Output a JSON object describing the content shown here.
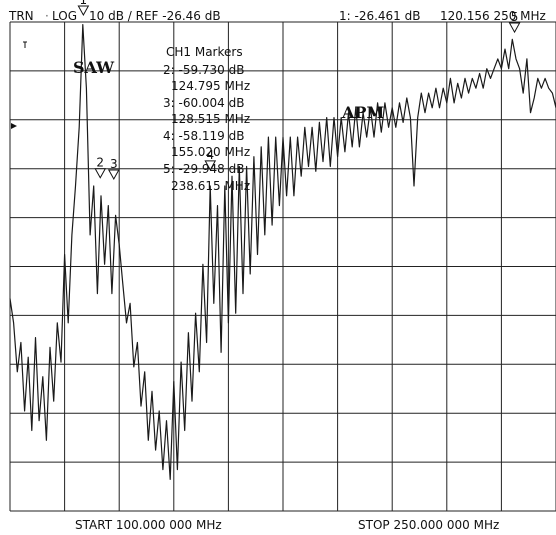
{
  "header": {
    "trace_mode": "TRN",
    "format": "LOG",
    "scale": "10 dB / REF  -26.46 dB",
    "active_marker": "1:  -26.461 dB",
    "active_marker_freq": "120.156 250 MHz"
  },
  "footer": {
    "start": "START  100.000 000 MHz",
    "stop": "STOP  250.000 000 MHz"
  },
  "marker_panel": {
    "title": "CH1 Markers",
    "lines": [
      "2: -59.730 dB",
      "124.795 MHz",
      "3: -60.004 dB",
      "128.515 MHz",
      "4: -58.119 dB",
      "155.020 MHz",
      "5: -29.948 dB",
      "238.615 MHz"
    ]
  },
  "annotations": {
    "saw": "SAW",
    "apm": "APM"
  },
  "colors": {
    "trace": "#1a1a1a",
    "grid": "#222222",
    "background": "#ffffff"
  },
  "chart_data": {
    "type": "line",
    "x_unit": "MHz",
    "y_unit": "dB",
    "xlim": [
      100,
      250
    ],
    "ylim": [
      -126.46,
      -26.46
    ],
    "grid": true,
    "markers": [
      {
        "label": "1",
        "x": 120.156,
        "y": -26.461
      },
      {
        "label": "2",
        "x": 124.795,
        "y": -59.73
      },
      {
        "label": "3",
        "x": 128.515,
        "y": -60.004
      },
      {
        "label": "4",
        "x": 155.02,
        "y": -58.119
      },
      {
        "label": "5",
        "x": 238.615,
        "y": -29.948
      }
    ],
    "series": [
      {
        "x": [
          100,
          101,
          102,
          103,
          104,
          105,
          106,
          107,
          108,
          109,
          110,
          111,
          112,
          113,
          114,
          115,
          116,
          117,
          118,
          119,
          120,
          121,
          122,
          123,
          124,
          125,
          126,
          127,
          128,
          129,
          130,
          131,
          132,
          133,
          134,
          135,
          136,
          137,
          138,
          139,
          140,
          141,
          142,
          143,
          144,
          145,
          146,
          147,
          148,
          149,
          150,
          151,
          152,
          153,
          154,
          155,
          156,
          157,
          158,
          159,
          160,
          161,
          162,
          163,
          164,
          165,
          166,
          167,
          168,
          169,
          170,
          171,
          172,
          173,
          174,
          175,
          176,
          177,
          178,
          179,
          180,
          181,
          182,
          183,
          184,
          185,
          186,
          187,
          188,
          189,
          190,
          191,
          192,
          193,
          194,
          195,
          196,
          197,
          198,
          199,
          200,
          201,
          202,
          203,
          204,
          205,
          206,
          207,
          208,
          209,
          210,
          211,
          212,
          213,
          214,
          215,
          216,
          217,
          218,
          219,
          220,
          221,
          222,
          223,
          224,
          225,
          226,
          227,
          228,
          229,
          230,
          231,
          232,
          233,
          234,
          235,
          236,
          237,
          238,
          239,
          240,
          241,
          242,
          243,
          244,
          245,
          246,
          247,
          248,
          249,
          250
        ],
        "y": [
          -83,
          -88,
          -98,
          -92,
          -106,
          -95,
          -110,
          -91,
          -108,
          -99,
          -112,
          -93,
          -104,
          -88,
          -96,
          -74,
          -88,
          -70,
          -60,
          -48,
          -27,
          -40,
          -70,
          -60,
          -82,
          -62,
          -76,
          -64,
          -82,
          -66,
          -72,
          -80,
          -88,
          -84,
          -97,
          -92,
          -105,
          -98,
          -112,
          -102,
          -114,
          -106,
          -118,
          -108,
          -120,
          -100,
          -118,
          -96,
          -110,
          -90,
          -104,
          -86,
          -98,
          -76,
          -92,
          -60,
          -84,
          -64,
          -94,
          -60,
          -88,
          -58,
          -86,
          -56,
          -82,
          -56,
          -78,
          -54,
          -74,
          -52,
          -70,
          -50,
          -68,
          -50,
          -64,
          -50,
          -62,
          -50,
          -62,
          -50,
          -58,
          -48,
          -56,
          -48,
          -57,
          -47,
          -55,
          -46,
          -56,
          -46,
          -54,
          -46,
          -53,
          -45,
          -52,
          -44,
          -52,
          -45,
          -50,
          -44,
          -50,
          -43,
          -49,
          -43,
          -48,
          -44,
          -48,
          -43,
          -47,
          -42,
          -46,
          -60,
          -46,
          -41,
          -45,
          -41,
          -44,
          -40,
          -44,
          -40,
          -43,
          -38,
          -43,
          -39,
          -42,
          -38,
          -41,
          -38,
          -40,
          -37,
          -40,
          -36,
          -38,
          -36,
          -34,
          -36,
          -32,
          -36,
          -30,
          -34,
          -36,
          -41,
          -34,
          -45,
          -42,
          -38,
          -40,
          -38,
          -40,
          -41,
          -44
        ]
      }
    ]
  }
}
